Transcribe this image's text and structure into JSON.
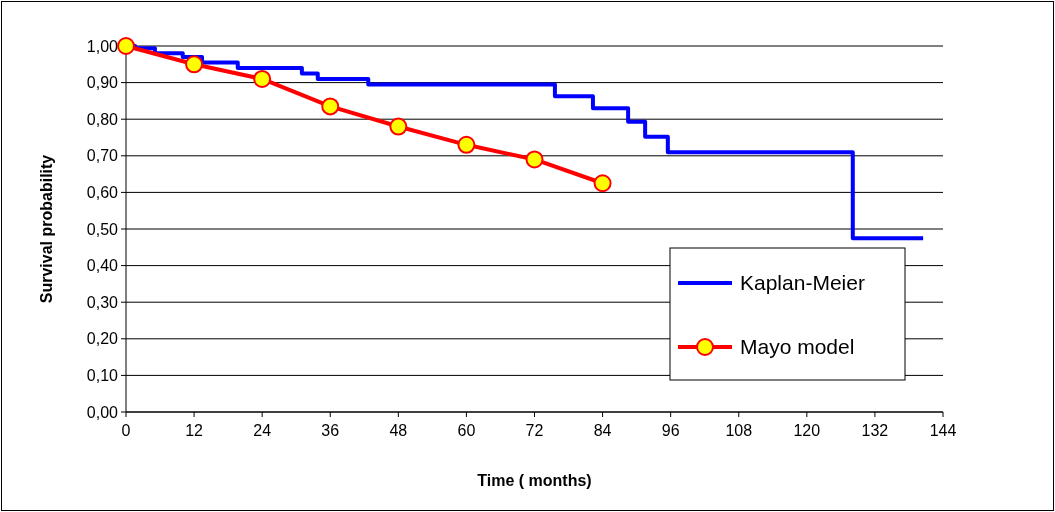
{
  "chart_data": {
    "type": "line",
    "xlabel": "Time ( months)",
    "ylabel": "Survival probability",
    "xlim": [
      0,
      144
    ],
    "xticks": [
      0,
      12,
      24,
      36,
      48,
      60,
      72,
      84,
      96,
      108,
      120,
      132,
      144
    ],
    "ylim": [
      0,
      1
    ],
    "yticks": [
      {
        "value": 0,
        "label": "0,00"
      },
      {
        "value": 0.1,
        "label": "0,10"
      },
      {
        "value": 0.2,
        "label": "0,20"
      },
      {
        "value": 0.3,
        "label": "0,30"
      },
      {
        "value": 0.4,
        "label": "0,40"
      },
      {
        "value": 0.5,
        "label": "0,50"
      },
      {
        "value": 0.6,
        "label": "0,60"
      },
      {
        "value": 0.7,
        "label": "0,70"
      },
      {
        "value": 0.8,
        "label": "0,80"
      },
      {
        "value": 0.9,
        "label": "0,90"
      },
      {
        "value": 1,
        "label": "1,00"
      }
    ],
    "grid": "y",
    "legend": "right",
    "series": [
      {
        "name": "Kaplan-Meier",
        "type": "step",
        "color": "#0000ff",
        "marker": "none",
        "x": [
          0,
          1.6,
          5.1,
          10,
          13.4,
          19.7,
          31,
          33.8,
          42.7,
          75.6,
          82.3,
          88.5,
          91.5,
          95.5,
          128.1,
          140.5
        ],
        "values": [
          1,
          0.994,
          0.98,
          0.97,
          0.955,
          0.94,
          0.925,
          0.91,
          0.895,
          0.863,
          0.83,
          0.793,
          0.752,
          0.71,
          0.475,
          0.475
        ]
      },
      {
        "name": "Mayo model",
        "type": "line",
        "color": "#ff0000",
        "marker": "circle",
        "x": [
          0,
          12,
          24,
          36,
          48,
          60,
          72,
          84
        ],
        "values": [
          1,
          0.95,
          0.91,
          0.835,
          0.78,
          0.73,
          0.69,
          0.625
        ]
      }
    ]
  }
}
